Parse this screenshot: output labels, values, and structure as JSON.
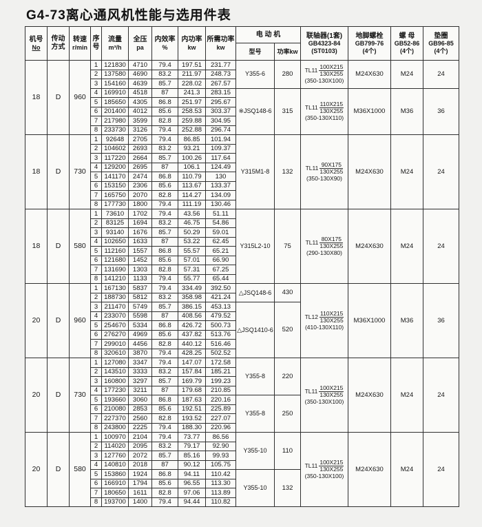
{
  "title": "G4-73离心通风机性能与选用件表",
  "header": {
    "machine": {
      "line1": "机号",
      "line2": "No"
    },
    "drive": {
      "line1": "传动",
      "line2": "方式"
    },
    "speed": {
      "line1": "转速",
      "line2": "r/min"
    },
    "seq": {
      "line1": "序",
      "line2": "号"
    },
    "flow": {
      "line1": "流量",
      "line2": "m³/h"
    },
    "pressure": {
      "line1": "全压",
      "line2": "pa"
    },
    "efficiency": {
      "line1": "内效率",
      "line2": "%"
    },
    "inner_power": {
      "line1": "内功率",
      "line2": "kw"
    },
    "required_power": {
      "line1": "所需功率",
      "line2": "kw"
    },
    "motor": {
      "group": "电 动 机",
      "model": "型号",
      "power": "功率kw"
    },
    "coupling": {
      "line1": "联轴器(1套)",
      "line2": "GB4323-84",
      "line3": "(ST0103)"
    },
    "anchor_bolt": {
      "line1": "地脚螺栓",
      "line2": "GB799-76",
      "line3": "(4个)"
    },
    "nut": {
      "line1": "螺 母",
      "line2": "GB52-86",
      "line3": "(4个)"
    },
    "washer": {
      "line1": "垫圈",
      "line2": "GB96-85",
      "line3": "(4个)"
    }
  },
  "blocks": [
    {
      "machine_no": "18",
      "drive": "D",
      "speed": "960",
      "rows": [
        {
          "seq": "1",
          "flow": "121830",
          "pressure": "4710",
          "eff": "79.4",
          "power": "197.51",
          "req": "231.77"
        },
        {
          "seq": "2",
          "flow": "137580",
          "pressure": "4690",
          "eff": "83.2",
          "power": "211.97",
          "req": "248.73"
        },
        {
          "seq": "3",
          "flow": "154160",
          "pressure": "4639",
          "eff": "85.7",
          "power": "228.02",
          "req": "267.57"
        },
        {
          "seq": "4",
          "flow": "169910",
          "pressure": "4518",
          "eff": "87",
          "power": "241.3",
          "req": "283.15"
        },
        {
          "seq": "5",
          "flow": "185650",
          "pressure": "4305",
          "eff": "86.8",
          "power": "251.97",
          "req": "295.67"
        },
        {
          "seq": "6",
          "flow": "201400",
          "pressure": "4012",
          "eff": "85.6",
          "power": "258.53",
          "req": "303.37"
        },
        {
          "seq": "7",
          "flow": "217980",
          "pressure": "3599",
          "eff": "82.8",
          "power": "259.88",
          "req": "304.95"
        },
        {
          "seq": "8",
          "flow": "233730",
          "pressure": "3126",
          "eff": "79.4",
          "power": "252.88",
          "req": "296.74"
        }
      ],
      "motor_groups": [
        {
          "model": "Y355-6",
          "power": "280",
          "span": 3
        },
        {
          "model": "※JSQ148-6",
          "power": "315",
          "span": 5
        }
      ],
      "part_groups": [
        {
          "prefix": "TL11",
          "top": "100X215",
          "bottom": "130X255",
          "note": "(350-130X100)",
          "bolt": "M24X630",
          "nut": "M24",
          "washer": "24",
          "span": 3
        },
        {
          "prefix": "TL11",
          "top": "110X215",
          "bottom": "130X255",
          "note": "(350-130X110)",
          "bolt": "M36X1000",
          "nut": "M36",
          "washer": "36",
          "span": 5
        }
      ]
    },
    {
      "machine_no": "18",
      "drive": "D",
      "speed": "730",
      "rows": [
        {
          "seq": "1",
          "flow": "92648",
          "pressure": "2705",
          "eff": "79.4",
          "power": "86.85",
          "req": "101.94"
        },
        {
          "seq": "2",
          "flow": "104602",
          "pressure": "2693",
          "eff": "83.2",
          "power": "93.21",
          "req": "109.37"
        },
        {
          "seq": "3",
          "flow": "117220",
          "pressure": "2664",
          "eff": "85.7",
          "power": "100.26",
          "req": "117.64"
        },
        {
          "seq": "4",
          "flow": "129200",
          "pressure": "2695",
          "eff": "87",
          "power": "106.1",
          "req": "124.49"
        },
        {
          "seq": "5",
          "flow": "141170",
          "pressure": "2474",
          "eff": "86.8",
          "power": "110.79",
          "req": "130"
        },
        {
          "seq": "6",
          "flow": "153150",
          "pressure": "2306",
          "eff": "85.6",
          "power": "113.67",
          "req": "133.37"
        },
        {
          "seq": "7",
          "flow": "165750",
          "pressure": "2070",
          "eff": "82.8",
          "power": "114.27",
          "req": "134.09"
        },
        {
          "seq": "8",
          "flow": "177730",
          "pressure": "1800",
          "eff": "79.4",
          "power": "111.19",
          "req": "130.46"
        }
      ],
      "motor_groups": [
        {
          "model": "Y315M1-8",
          "power": "132",
          "span": 8
        }
      ],
      "part_groups": [
        {
          "prefix": "TL11",
          "top": "90X175",
          "bottom": "130X255",
          "note": "(350-130X90)",
          "bolt": "M24X630",
          "nut": "M24",
          "washer": "24",
          "span": 8
        }
      ]
    },
    {
      "machine_no": "18",
      "drive": "D",
      "speed": "580",
      "rows": [
        {
          "seq": "1",
          "flow": "73610",
          "pressure": "1702",
          "eff": "79.4",
          "power": "43.56",
          "req": "51.11"
        },
        {
          "seq": "2",
          "flow": "83125",
          "pressure": "1694",
          "eff": "83.2",
          "power": "46.75",
          "req": "54.86"
        },
        {
          "seq": "3",
          "flow": "93140",
          "pressure": "1676",
          "eff": "85.7",
          "power": "50.29",
          "req": "59.01"
        },
        {
          "seq": "4",
          "flow": "102650",
          "pressure": "1633",
          "eff": "87",
          "power": "53.22",
          "req": "62.45"
        },
        {
          "seq": "5",
          "flow": "112160",
          "pressure": "1557",
          "eff": "86.8",
          "power": "55.57",
          "req": "65.21"
        },
        {
          "seq": "6",
          "flow": "121680",
          "pressure": "1452",
          "eff": "85.6",
          "power": "57.01",
          "req": "66.90"
        },
        {
          "seq": "7",
          "flow": "131690",
          "pressure": "1303",
          "eff": "82.8",
          "power": "57.31",
          "req": "67.25"
        },
        {
          "seq": "8",
          "flow": "141210",
          "pressure": "1133",
          "eff": "79.4",
          "power": "55.77",
          "req": "65.44"
        }
      ],
      "motor_groups": [
        {
          "model": "Y315L2-10",
          "power": "75",
          "span": 8
        }
      ],
      "part_groups": [
        {
          "prefix": "TL11",
          "top": "80X175",
          "bottom": "130X255",
          "note": "(290-130X80)",
          "bolt": "M24X630",
          "nut": "M24",
          "washer": "24",
          "span": 8
        }
      ]
    },
    {
      "machine_no": "20",
      "drive": "D",
      "speed": "960",
      "rows": [
        {
          "seq": "1",
          "flow": "167130",
          "pressure": "5837",
          "eff": "79.4",
          "power": "334.49",
          "req": "392.50"
        },
        {
          "seq": "2",
          "flow": "188730",
          "pressure": "5812",
          "eff": "83.2",
          "power": "358.98",
          "req": "421.24"
        },
        {
          "seq": "3",
          "flow": "211470",
          "pressure": "5749",
          "eff": "85.7",
          "power": "386.15",
          "req": "453.13"
        },
        {
          "seq": "4",
          "flow": "233070",
          "pressure": "5598",
          "eff": "87",
          "power": "408.56",
          "req": "479.52"
        },
        {
          "seq": "5",
          "flow": "254670",
          "pressure": "5334",
          "eff": "86.8",
          "power": "426.72",
          "req": "500.73"
        },
        {
          "seq": "6",
          "flow": "276270",
          "pressure": "4969",
          "eff": "85.6",
          "power": "437.82",
          "req": "513.76"
        },
        {
          "seq": "7",
          "flow": "299010",
          "pressure": "4456",
          "eff": "82.8",
          "power": "440.12",
          "req": "516.46"
        },
        {
          "seq": "8",
          "flow": "320610",
          "pressure": "3870",
          "eff": "79.4",
          "power": "428.25",
          "req": "502.52"
        }
      ],
      "motor_groups": [
        {
          "model": "△JSQ148-6",
          "power": "430",
          "span": 2
        },
        {
          "model": "△JSQ1410-6",
          "power": "520",
          "span": 6
        }
      ],
      "part_groups": [
        {
          "prefix": "TL12",
          "top": "110X215",
          "bottom": "130X255",
          "note": "(410-130X110)",
          "bolt": "M36X1000",
          "nut": "M36",
          "washer": "36",
          "span": 8
        }
      ]
    },
    {
      "machine_no": "20",
      "drive": "D",
      "speed": "730",
      "rows": [
        {
          "seq": "1",
          "flow": "127080",
          "pressure": "3347",
          "eff": "79.4",
          "power": "147.07",
          "req": "172.58"
        },
        {
          "seq": "2",
          "flow": "143510",
          "pressure": "3333",
          "eff": "83.2",
          "power": "157.84",
          "req": "185.21"
        },
        {
          "seq": "3",
          "flow": "160800",
          "pressure": "3297",
          "eff": "85.7",
          "power": "169.79",
          "req": "199.23"
        },
        {
          "seq": "4",
          "flow": "177230",
          "pressure": "3211",
          "eff": "87",
          "power": "179.68",
          "req": "210.85"
        },
        {
          "seq": "5",
          "flow": "193660",
          "pressure": "3060",
          "eff": "86.8",
          "power": "187.63",
          "req": "220.16"
        },
        {
          "seq": "6",
          "flow": "210080",
          "pressure": "2853",
          "eff": "85.6",
          "power": "192.51",
          "req": "225.89"
        },
        {
          "seq": "7",
          "flow": "227370",
          "pressure": "2560",
          "eff": "82.8",
          "power": "193.52",
          "req": "227.07"
        },
        {
          "seq": "8",
          "flow": "243800",
          "pressure": "2225",
          "eff": "79.4",
          "power": "188.30",
          "req": "220.96"
        }
      ],
      "motor_groups": [
        {
          "model": "Y355-8",
          "power": "220",
          "span": 4
        },
        {
          "model": "Y355-8",
          "power": "250",
          "span": 4
        }
      ],
      "part_groups": [
        {
          "prefix": "TL11",
          "top": "100X215",
          "bottom": "130X255",
          "note": "(350-130X100)",
          "bolt": "M24X630",
          "nut": "M24",
          "washer": "24",
          "span": 8
        }
      ]
    },
    {
      "machine_no": "20",
      "drive": "D",
      "speed": "580",
      "rows": [
        {
          "seq": "1",
          "flow": "100970",
          "pressure": "2104",
          "eff": "79.4",
          "power": "73.77",
          "req": "86.56"
        },
        {
          "seq": "2",
          "flow": "114020",
          "pressure": "2095",
          "eff": "83.2",
          "power": "79.17",
          "req": "92.90"
        },
        {
          "seq": "3",
          "flow": "127760",
          "pressure": "2072",
          "eff": "85.7",
          "power": "85.16",
          "req": "99.93"
        },
        {
          "seq": "4",
          "flow": "140810",
          "pressure": "2018",
          "eff": "87",
          "power": "90.12",
          "req": "105.75"
        },
        {
          "seq": "5",
          "flow": "153860",
          "pressure": "1924",
          "eff": "86.8",
          "power": "94.11",
          "req": "110.42"
        },
        {
          "seq": "6",
          "flow": "166910",
          "pressure": "1794",
          "eff": "85.6",
          "power": "96.55",
          "req": "113.30"
        },
        {
          "seq": "7",
          "flow": "180650",
          "pressure": "1611",
          "eff": "82.8",
          "power": "97.06",
          "req": "113.89"
        },
        {
          "seq": "8",
          "flow": "193700",
          "pressure": "1400",
          "eff": "79.4",
          "power": "94.44",
          "req": "110.82"
        }
      ],
      "motor_groups": [
        {
          "model": "Y355-10",
          "power": "110",
          "span": 4
        },
        {
          "model": "Y355-10",
          "power": "132",
          "span": 4
        }
      ],
      "part_groups": [
        {
          "prefix": "TL11",
          "top": "100X215",
          "bottom": "130X255",
          "note": "(350-130X100)",
          "bolt": "M24X630",
          "nut": "M24",
          "washer": "24",
          "span": 8
        }
      ]
    }
  ]
}
